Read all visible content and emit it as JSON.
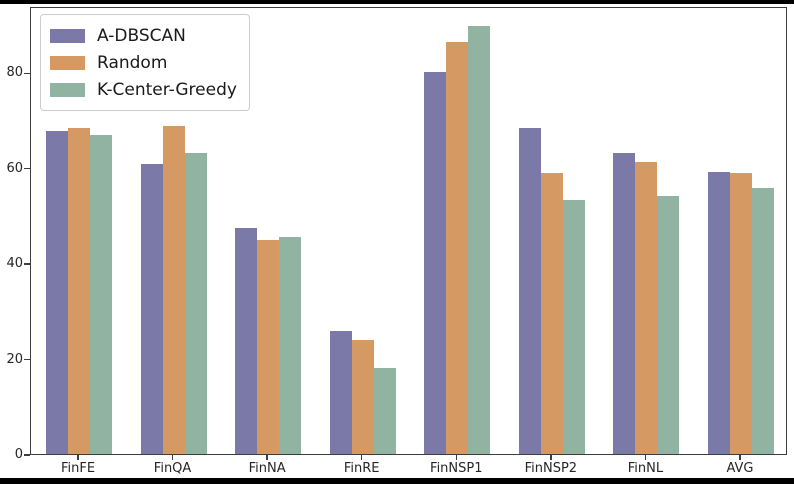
{
  "chart_data": {
    "type": "bar",
    "title": "",
    "xlabel": "",
    "ylabel": "",
    "categories": [
      "FinFE",
      "FinQA",
      "FinNA",
      "FinRE",
      "FinNSP1",
      "FinNSP2",
      "FinNL",
      "AVG"
    ],
    "series": [
      {
        "name": "A-DBSCAN",
        "color": "#7b79a8",
        "values": [
          67.8,
          60.7,
          47.4,
          25.7,
          80.1,
          68.3,
          63.0,
          59.1
        ]
      },
      {
        "name": "Random",
        "color": "#d59a63",
        "values": [
          68.4,
          68.7,
          44.8,
          23.9,
          86.4,
          59.0,
          61.3,
          59.0
        ]
      },
      {
        "name": "K-Center-Greedy",
        "color": "#90b4a1",
        "values": [
          66.9,
          63.1,
          45.4,
          18.0,
          89.7,
          53.2,
          54.0,
          55.7
        ]
      }
    ],
    "yticks": [
      0,
      20,
      40,
      60,
      80
    ],
    "ylim": [
      0,
      93.9
    ],
    "grid": false,
    "legend_position": "upper-left",
    "axis_color": "#3d3d3d"
  }
}
